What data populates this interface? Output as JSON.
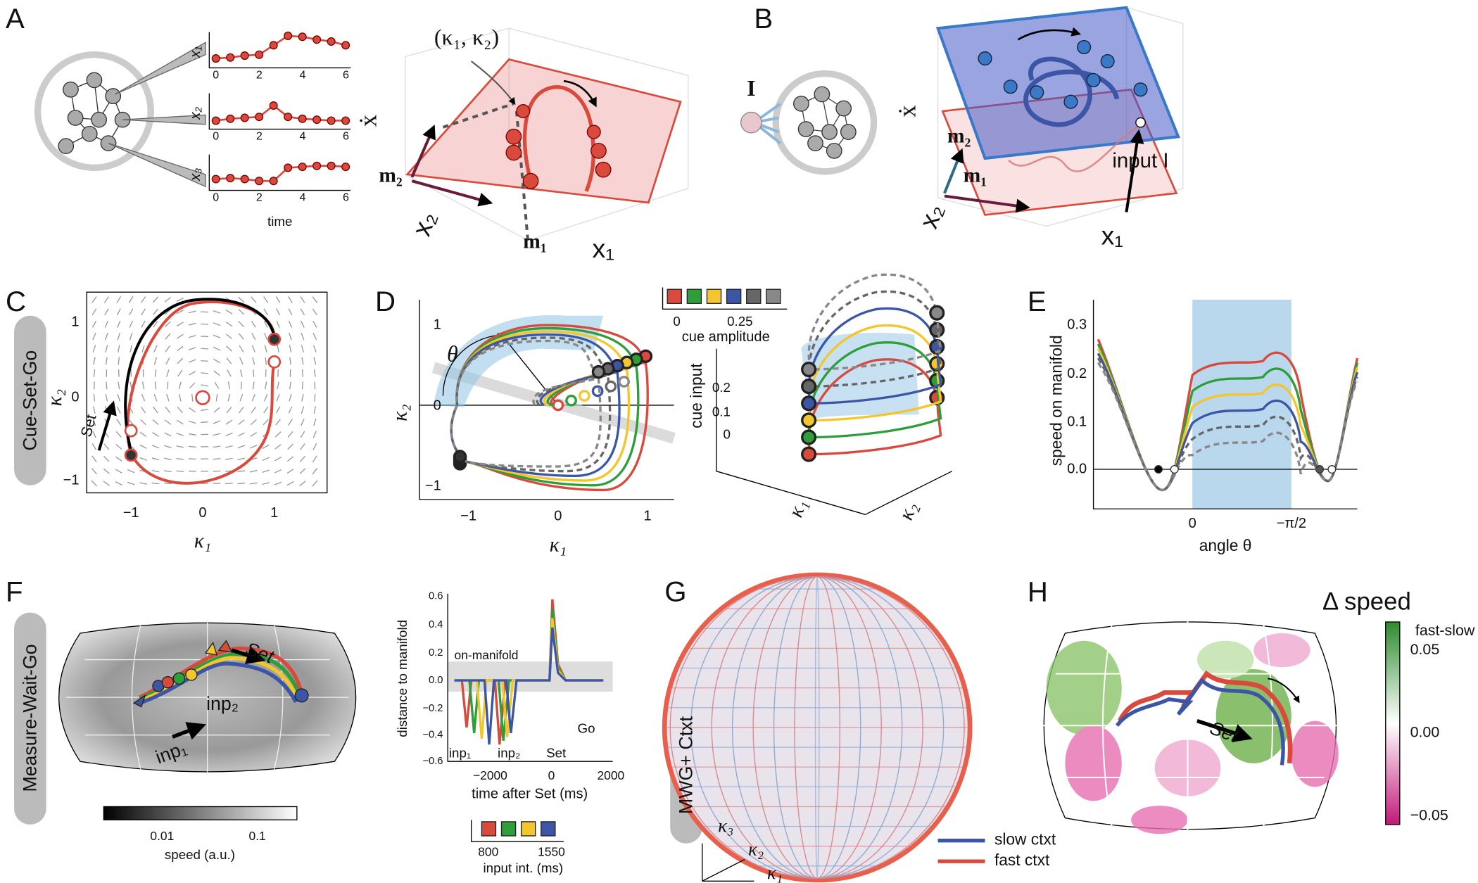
{
  "panels": {
    "A": {
      "label": "A",
      "trace_names": [
        "x₁",
        "x₂",
        "x₃"
      ],
      "time_ticks": [
        "0",
        "2",
        "4",
        "6"
      ],
      "time_axis": "time",
      "state_label": "(κ₁, κ₂)",
      "axes": {
        "xdot": "ẋ",
        "m2": "m₂",
        "m1": "m₁",
        "x2": "x₂",
        "x1": "x₁"
      }
    },
    "B": {
      "label": "B",
      "input_node": "I",
      "axes": {
        "xdot": "ẋ",
        "m2": "m₂",
        "m1": "m₁",
        "x2": "x₂",
        "x1": "x₁"
      },
      "input_label": "input I"
    },
    "C": {
      "label": "C",
      "task": "Cue-Set-Go",
      "xticks": [
        "−1",
        "0",
        "1"
      ],
      "yticks": [
        "1",
        "0",
        "−1"
      ],
      "xlabel": "κ₁",
      "ylabel": "κ₂",
      "annotation": "Set"
    },
    "D": {
      "label": "D",
      "angle": "θ",
      "xticks": [
        "−1",
        "0",
        "1"
      ],
      "yticks": [
        "1",
        "0",
        "−1"
      ],
      "xlabel": "κ₁",
      "ylabel": "κ₂",
      "legend": {
        "ticks": [
          "0",
          "0.25"
        ],
        "title": "cue amplitude"
      },
      "inset": {
        "zlabel": "cue input",
        "zticks": [
          "0.2",
          "0.1",
          "0"
        ],
        "xlabel": "κ₁",
        "ylabel": "κ₂"
      }
    },
    "E": {
      "label": "E",
      "ylabel": "speed on manifold",
      "yticks": [
        "0.3",
        "0.2",
        "0.1",
        "0.0"
      ],
      "xticks": [
        "0",
        "−π/2"
      ],
      "xlabel": "angle θ"
    },
    "F": {
      "label": "F",
      "task": "Measure-Wait-Go",
      "map_annotations": [
        "inp₁",
        "inp₂",
        "Set"
      ],
      "colorbar": {
        "ticks": [
          "0.01",
          "0.1"
        ],
        "label": "speed (a.u.)"
      },
      "distance_plot": {
        "ylabel": "distance to manifold",
        "yticks": [
          "0.6",
          "0.4",
          "0.2",
          "0.0",
          "−0.2",
          "−0.4",
          "−0.6"
        ],
        "xticks": [
          "−2000",
          "0",
          "2000"
        ],
        "xlabel": "time after Set (ms)",
        "band_label": "on-manifold",
        "events": [
          "inp₁",
          "inp₂",
          "Set",
          "Go"
        ]
      },
      "legend": {
        "ticks": [
          "800",
          "1550"
        ],
        "title": "input int. (ms)"
      }
    },
    "G": {
      "label": "G",
      "task": "MWG+ Ctxt",
      "axes": [
        "κ₃",
        "κ₂",
        "κ₁"
      ],
      "legend": [
        "slow ctxt",
        "fast ctxt"
      ]
    },
    "H": {
      "label": "H",
      "title": "Δ speed",
      "colorbar": {
        "label": "fast-slow",
        "ticks": [
          "0.05",
          "0.00",
          "−0.05"
        ]
      },
      "annotation": "Set"
    }
  }
}
